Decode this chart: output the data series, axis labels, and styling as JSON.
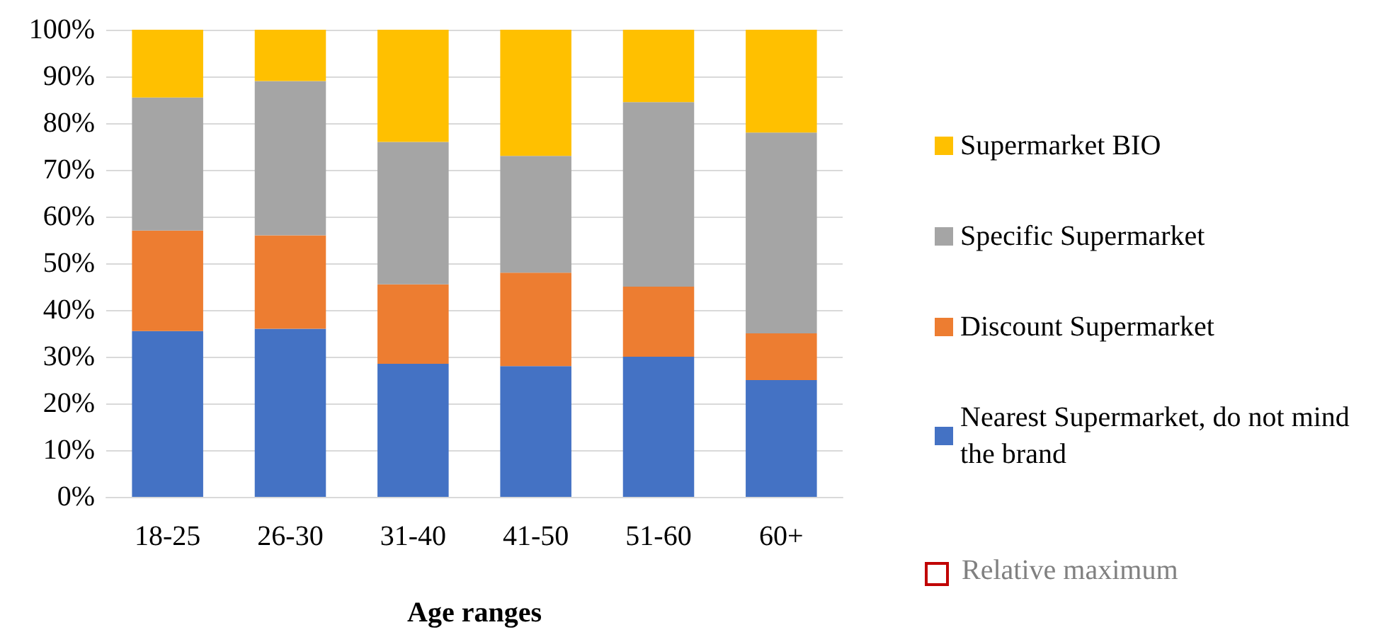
{
  "chart_data": {
    "type": "bar",
    "stacked": true,
    "xlabel": "Age ranges",
    "categories": [
      "18-25",
      "26-30",
      "31-40",
      "41-50",
      "51-60",
      "60+"
    ],
    "series": [
      {
        "name": "Nearest Supermarket, do not mind the brand",
        "color": "#4472c4",
        "values": [
          35.5,
          36,
          28.5,
          28,
          30,
          25
        ]
      },
      {
        "name": "Discount Supermarket",
        "color": "#ed7d31",
        "values": [
          21.5,
          20,
          17,
          20,
          15,
          10
        ]
      },
      {
        "name": "Specific Supermarket",
        "color": "#a5a5a5",
        "values": [
          28.5,
          33,
          30.5,
          25,
          39.5,
          43
        ]
      },
      {
        "name": "Supermarket BIO",
        "color": "#ffc000",
        "values": [
          14.5,
          11,
          24,
          27,
          15.5,
          22
        ]
      }
    ],
    "ylim": [
      0,
      100
    ],
    "yticks": [
      {
        "value": 0,
        "label": "0%"
      },
      {
        "value": 10,
        "label": "10%"
      },
      {
        "value": 20,
        "label": "20%"
      },
      {
        "value": 30,
        "label": "30%"
      },
      {
        "value": 40,
        "label": "40%"
      },
      {
        "value": 50,
        "label": "50%"
      },
      {
        "value": 60,
        "label": "60%"
      },
      {
        "value": 70,
        "label": "70%"
      },
      {
        "value": 80,
        "label": "80%"
      },
      {
        "value": 90,
        "label": "90%"
      },
      {
        "value": 100,
        "label": "100%"
      }
    ],
    "grid": "y",
    "legend": "right",
    "annotations": [
      "Relative maximum"
    ]
  }
}
